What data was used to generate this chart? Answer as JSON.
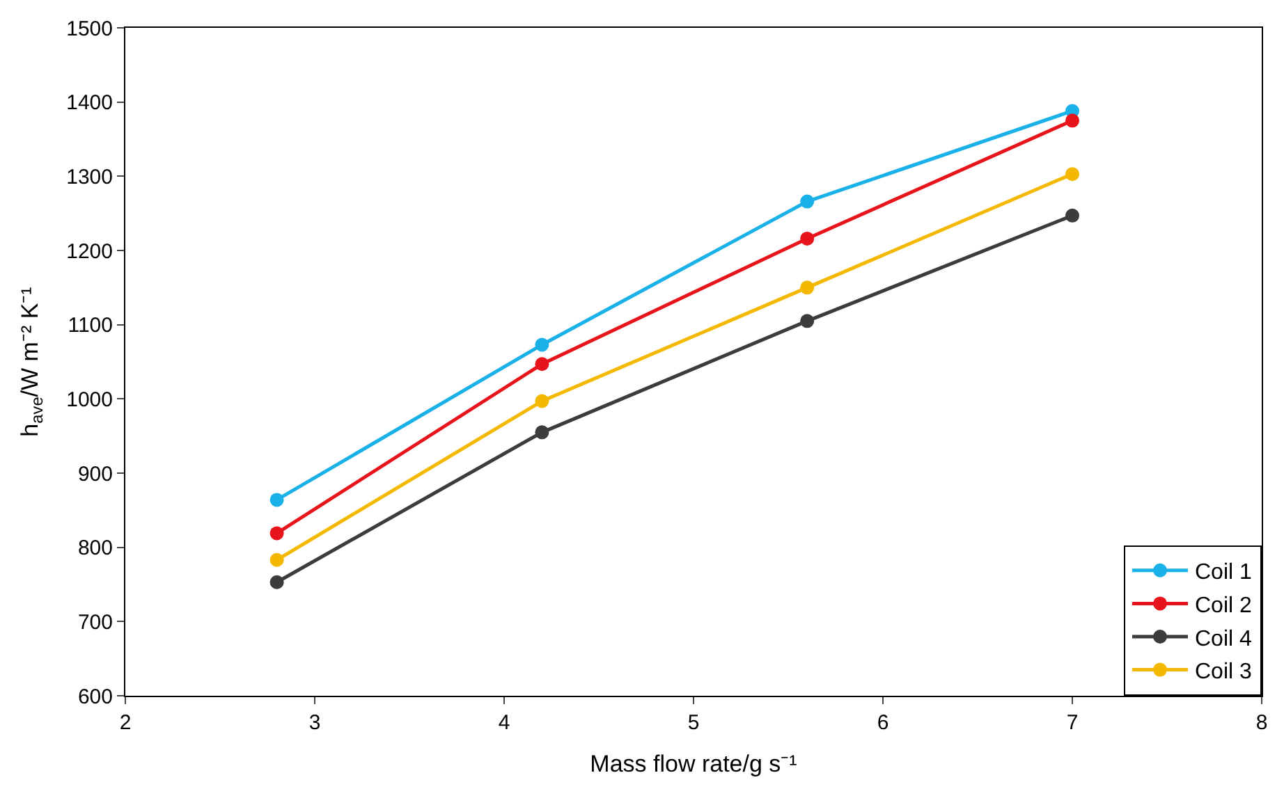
{
  "chart_data": {
    "type": "line",
    "xlabel": "Mass flow rate/g s⁻¹",
    "ylabel": "h$_{ave}$/W m⁻² K⁻¹",
    "x": [
      2.8,
      4.2,
      5.6,
      7.0
    ],
    "series": [
      {
        "name": "Coil 1",
        "color": "#1ab0e8",
        "values": [
          864,
          1073,
          1266,
          1388
        ]
      },
      {
        "name": "Coil 2",
        "color": "#e8141b",
        "values": [
          819,
          1047,
          1216,
          1375
        ]
      },
      {
        "name": "Coil 4",
        "color": "#3c3c3c",
        "values": [
          753,
          955,
          1105,
          1247
        ]
      },
      {
        "name": "Coil 3",
        "color": "#f5b800",
        "values": [
          783,
          997,
          1150,
          1303
        ]
      }
    ],
    "xlim": [
      2,
      8
    ],
    "xticks": [
      2,
      3,
      4,
      5,
      6,
      7,
      8
    ],
    "ylim": [
      600,
      1500
    ],
    "yticks": [
      600,
      700,
      800,
      900,
      1000,
      1100,
      1200,
      1300,
      1400,
      1500
    ],
    "legend": "bottom right",
    "marker": "circle",
    "line_style": "solid"
  }
}
